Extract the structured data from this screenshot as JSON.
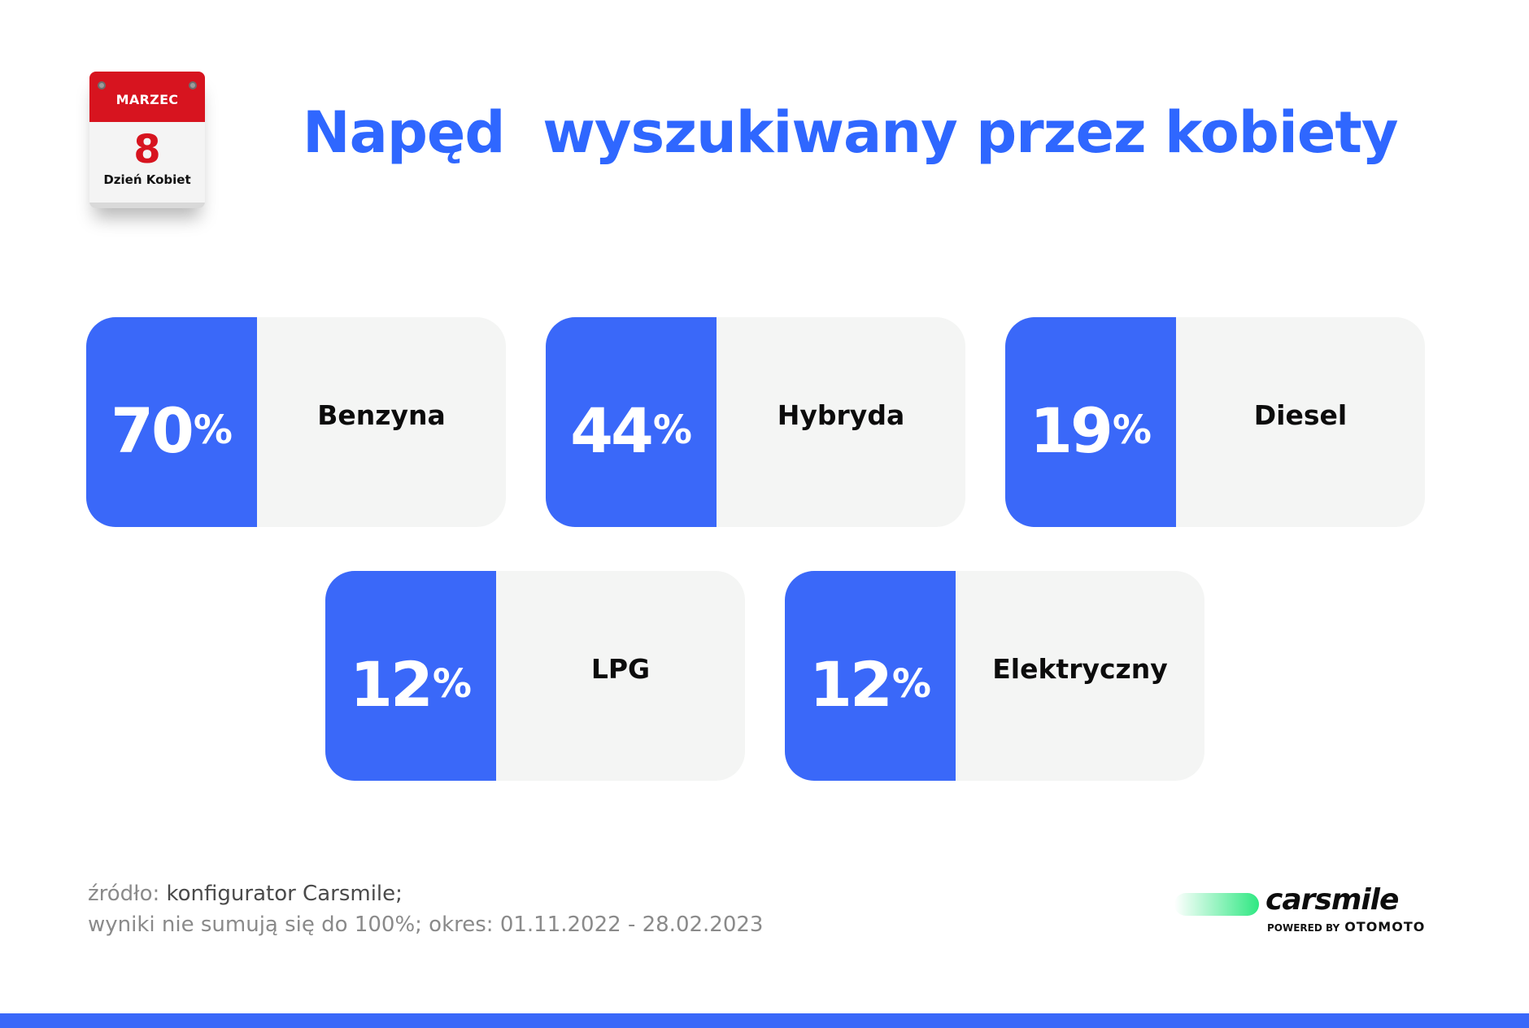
{
  "calendar": {
    "month": "MARZEC",
    "day": "8",
    "label": "Dzień Kobiet"
  },
  "header": {
    "title": "Napęd  wyszukiwany przez kobiety"
  },
  "chart_data": {
    "type": "table",
    "title": "Napęd  wyszukiwany przez kobiety",
    "unit": "%",
    "categories": [
      "Benzyna",
      "Hybryda",
      "Diesel",
      "LPG",
      "Elektryczny"
    ],
    "values": [
      70,
      44,
      19,
      12,
      12
    ],
    "cards": [
      {
        "value": "70",
        "unit": "%",
        "label": "Benzyna"
      },
      {
        "value": "44",
        "unit": "%",
        "label": "Hybryda"
      },
      {
        "value": "19",
        "unit": "%",
        "label": "Diesel"
      },
      {
        "value": "12",
        "unit": "%",
        "label": "LPG"
      },
      {
        "value": "12",
        "unit": "%",
        "label": "Elektryczny"
      }
    ]
  },
  "footer": {
    "source_prefix": "źródło:",
    "source_name": "konfigurator Carsmile;",
    "note": "wyniki nie sumują się do 100%; okres: 01.11.2022 - 28.02.2023"
  },
  "brand": {
    "name": "carsmile",
    "powered_by": "POWERED BY",
    "partner": "OTOMOTO"
  },
  "colors": {
    "accent": "#3a68f9",
    "title": "#2f67ff",
    "card_bg": "#f4f5f4",
    "calendar_red": "#d7141f",
    "brand_green": "#2fe882"
  }
}
